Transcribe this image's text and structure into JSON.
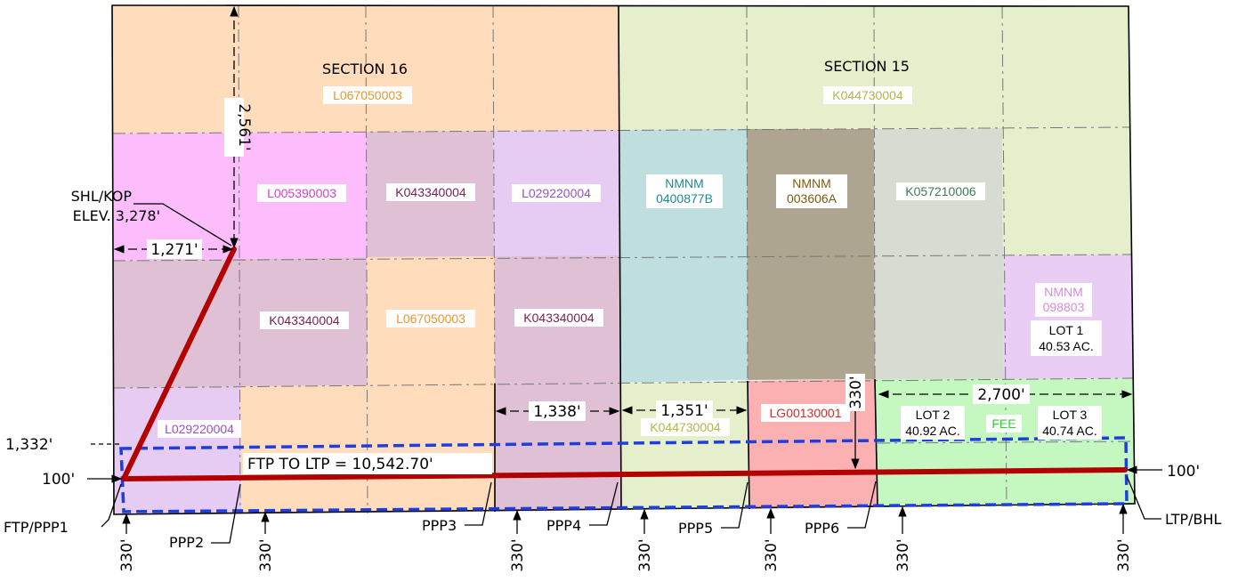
{
  "sections": [
    {
      "title": "SECTION  16",
      "lease": "L067050003",
      "lease_color": "#e8962e"
    },
    {
      "title": "SECTION  15",
      "lease": "K044730004",
      "lease_color": "#b4b64a"
    }
  ],
  "tracts": [
    {
      "label": "L005390003",
      "color": "#d63cd6"
    },
    {
      "label": "K043340004",
      "color": "#7a1f4f"
    },
    {
      "label": "L029220004",
      "color": "#9a4fd1"
    },
    {
      "lines": [
        "NMNM",
        "0400877B"
      ],
      "color": "#1e8b8b"
    },
    {
      "lines": [
        "NMNM",
        "003606A"
      ],
      "color": "#7a5a14"
    },
    {
      "label": "K057210006",
      "color": "#3f7a55"
    },
    {
      "label": "K043340004",
      "color": "#7a1f4f"
    },
    {
      "label": "L067050003",
      "color": "#e8962e"
    },
    {
      "label": "K043340004",
      "color": "#7a1f4f"
    },
    {
      "lines": [
        "NMNM",
        "098803"
      ],
      "color": "#d98ad9"
    },
    {
      "label": "L029220004",
      "color": "#9a4fd1"
    },
    {
      "label": "K044730004",
      "color": "#b4b64a"
    },
    {
      "label": "LG00130001",
      "color": "#d62a2a"
    },
    {
      "label": "FEE",
      "color": "#33cc33"
    }
  ],
  "lots": [
    {
      "name": "LOT 1",
      "acres": "40.53 AC."
    },
    {
      "name": "LOT 2",
      "acres": "40.92 AC."
    },
    {
      "name": "LOT 3",
      "acres": "40.74 AC."
    }
  ],
  "dimensions": {
    "north_offset": "2,561'",
    "west_offset": "1,271'",
    "south_offset": "1,332'",
    "lateral_offset_left": "100'",
    "lateral_offset_right": "100'",
    "ftp_to_ltp": "FTP  TO  LTP  =  10,542.70'",
    "seg_1338": "1,338'",
    "seg_1351": "1,351'",
    "seg_2700": "2,700'",
    "vert_330": "330'",
    "setback": "330'"
  },
  "points": {
    "shl": "SHL/KOP",
    "elev": "ELEV.  3,278'",
    "ftp": "FTP/PPP1",
    "ppp2": "PPP2",
    "ppp3": "PPP3",
    "ppp4": "PPP4",
    "ppp5": "PPP5",
    "ppp6": "PPP6",
    "ltp": "LTP/BHL"
  },
  "colors": {
    "wellbore": "#b30000",
    "setback_box": "#1f3fdc",
    "section16_fill": "#fedcbc",
    "section15_fill": "#e6efcc"
  }
}
